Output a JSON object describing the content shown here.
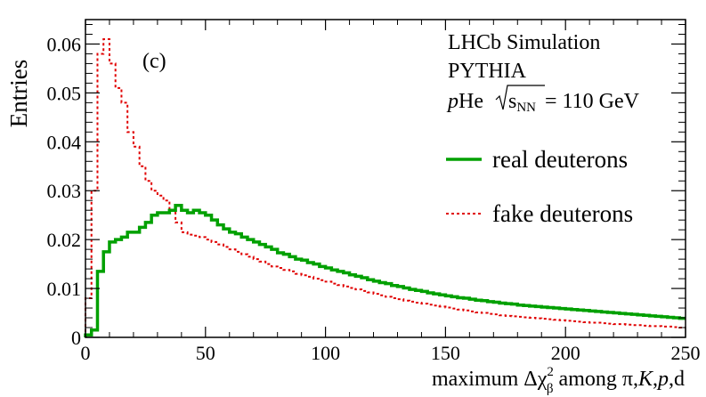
{
  "chart_data": {
    "type": "line",
    "drawstyle": "steps",
    "panel_label": "(c)",
    "xlabel": "maximum Δχ²ᵦ among π,K,p,d",
    "xlabel_parts": {
      "pre": "maximum Δχ",
      "sup": "2",
      "sub": "β",
      "post": " among π,",
      "K": "K",
      "comma": ",",
      "p": "p",
      "end": ",d"
    },
    "ylabel": "Entries",
    "xlim": [
      0,
      250
    ],
    "ylim": [
      0,
      0.065
    ],
    "xticks": [
      0,
      50,
      100,
      150,
      200,
      250
    ],
    "yticks": [
      0,
      0.01,
      0.02,
      0.03,
      0.04,
      0.05,
      0.06
    ],
    "ytick_labels": [
      "0",
      "0.01",
      "0.02",
      "0.03",
      "0.04",
      "0.05",
      "0.06"
    ],
    "annotations": {
      "experiment": "LHCb Simulation",
      "generator": "PYTHIA",
      "system_italic": "p",
      "system_rest": "He",
      "sqrt_arg": "s",
      "sqrt_sub": "NN",
      "energy": " = 110 GeV"
    },
    "bin_width": 2.5,
    "series": [
      {
        "name": "real deuterons",
        "color": "#00a000",
        "style": "solid",
        "values": [
          0.0005,
          0.0015,
          0.0135,
          0.0175,
          0.0195,
          0.02,
          0.0205,
          0.0215,
          0.0215,
          0.0225,
          0.0235,
          0.025,
          0.0255,
          0.0255,
          0.026,
          0.027,
          0.026,
          0.0255,
          0.026,
          0.0255,
          0.025,
          0.024,
          0.023,
          0.0222,
          0.0215,
          0.0212,
          0.0205,
          0.02,
          0.0195,
          0.019,
          0.0185,
          0.018,
          0.0173,
          0.017,
          0.0165,
          0.016,
          0.0158,
          0.0153,
          0.015,
          0.0145,
          0.0142,
          0.0138,
          0.0135,
          0.0132,
          0.0128,
          0.0125,
          0.0122,
          0.0118,
          0.0115,
          0.0112,
          0.011,
          0.0106,
          0.0104,
          0.0101,
          0.0098,
          0.0096,
          0.0094,
          0.0091,
          0.0089,
          0.0087,
          0.0085,
          0.0083,
          0.0081,
          0.008,
          0.0078,
          0.0076,
          0.0075,
          0.0073,
          0.0072,
          0.007,
          0.0069,
          0.0068,
          0.0066,
          0.0065,
          0.0064,
          0.0063,
          0.0062,
          0.0061,
          0.006,
          0.0059,
          0.0058,
          0.0057,
          0.0056,
          0.0055,
          0.0054,
          0.0053,
          0.0052,
          0.0051,
          0.005,
          0.0049,
          0.0048,
          0.0047,
          0.0046,
          0.0045,
          0.0044,
          0.0043,
          0.0042,
          0.0041,
          0.004,
          0.0039
        ]
      },
      {
        "name": "fake deuterons",
        "color": "#e00000",
        "style": "dashed",
        "values": [
          0.008,
          0.03,
          0.058,
          0.061,
          0.056,
          0.051,
          0.048,
          0.042,
          0.039,
          0.035,
          0.032,
          0.03,
          0.029,
          0.028,
          0.026,
          0.0235,
          0.0215,
          0.021,
          0.0208,
          0.0205,
          0.02,
          0.0195,
          0.019,
          0.0185,
          0.018,
          0.0175,
          0.017,
          0.0165,
          0.016,
          0.0155,
          0.015,
          0.0145,
          0.0142,
          0.0138,
          0.0135,
          0.013,
          0.0127,
          0.0124,
          0.012,
          0.0117,
          0.0114,
          0.011,
          0.0107,
          0.0104,
          0.0101,
          0.0098,
          0.0095,
          0.0092,
          0.0089,
          0.0086,
          0.0083,
          0.008,
          0.0078,
          0.0075,
          0.0073,
          0.0071,
          0.0069,
          0.0067,
          0.0065,
          0.0063,
          0.0061,
          0.0059,
          0.0057,
          0.0055,
          0.0053,
          0.0051,
          0.005,
          0.0048,
          0.0047,
          0.0045,
          0.0044,
          0.0043,
          0.0042,
          0.0041,
          0.004,
          0.0039,
          0.0038,
          0.0037,
          0.0036,
          0.0035,
          0.0034,
          0.0033,
          0.0032,
          0.0031,
          0.003,
          0.003,
          0.0029,
          0.0028,
          0.0027,
          0.0027,
          0.0026,
          0.0025,
          0.0025,
          0.0024,
          0.0023,
          0.0023,
          0.0022,
          0.0022,
          0.0021,
          0.002
        ]
      }
    ]
  }
}
